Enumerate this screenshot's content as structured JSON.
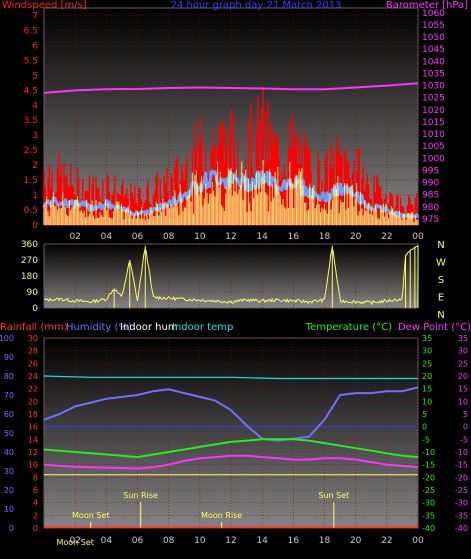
{
  "colors": {
    "windspeed": "#ff2020",
    "gust": "#ff0000",
    "avgwind": "#6fa0ff",
    "winddir": "#ffff60",
    "barometer": "#ff33ff",
    "rainfall": "#ff3333",
    "humidity": "#7070ff",
    "indoor_hum": "#ffffff",
    "indoor_temp": "#20e0e0",
    "temperature": "#22ee22",
    "dewpoint": "#ff33ff",
    "sun": "#ffff66",
    "moon": "#ffff66",
    "grid": "#9a0000"
  },
  "chart_data": [
    {
      "type": "line",
      "panel": "wind_barometer",
      "title": "24 hour graph day  21 March 2013",
      "left_axis_label": "Windspeed [m/s]",
      "right_axis_label": "Barometer [hPa]",
      "left_ticks": [
        "0",
        "0.5",
        "1",
        "1.5",
        "2",
        "2.5",
        "3",
        "3.5",
        "4",
        "4.5",
        "5",
        "5.5",
        "6",
        "6.5",
        "7"
      ],
      "left_range": [
        0,
        7.25
      ],
      "right_ticks": [
        "975",
        "980",
        "985",
        "990",
        "995",
        "1000",
        "1005",
        "1010",
        "1015",
        "1020",
        "1025",
        "1030",
        "1035",
        "1040",
        "1045",
        "1050",
        "1055",
        "1060"
      ],
      "right_range": [
        972.5,
        1062
      ],
      "x_ticks": [
        "02",
        "04",
        "06",
        "08",
        "10",
        "12",
        "14",
        "16",
        "18",
        "20",
        "22",
        "00"
      ],
      "x_range": [
        0,
        24
      ],
      "barometer": {
        "x": [
          0,
          2,
          4,
          6,
          8,
          10,
          12,
          14,
          16,
          18,
          20,
          22,
          24
        ],
        "y": [
          1027.0,
          1028.0,
          1028.5,
          1028.6,
          1029.0,
          1029.2,
          1029.0,
          1028.8,
          1028.5,
          1028.5,
          1029.2,
          1030.0,
          1031.0
        ]
      },
      "gust_envelope": {
        "x": [
          0,
          1,
          2,
          3,
          4,
          5,
          6,
          7,
          8,
          9,
          10,
          11,
          12,
          13,
          14,
          15,
          16,
          17,
          18,
          19,
          20,
          21,
          22,
          23,
          24
        ],
        "y": [
          2.5,
          2.2,
          1.8,
          1.6,
          1.9,
          1.4,
          1.2,
          1.6,
          1.8,
          2.6,
          3.4,
          3.8,
          3.6,
          3.4,
          4.3,
          3.2,
          3.6,
          2.6,
          2.2,
          3.0,
          2.6,
          1.6,
          1.4,
          0.9,
          1.0
        ]
      },
      "avg_wind": {
        "x": [
          0,
          1,
          2,
          3,
          4,
          5,
          6,
          7,
          8,
          9,
          10,
          11,
          12,
          13,
          14,
          15,
          16,
          17,
          18,
          19,
          20,
          21,
          22,
          23,
          24
        ],
        "y": [
          0.7,
          0.8,
          0.7,
          0.6,
          0.7,
          0.5,
          0.4,
          0.5,
          0.7,
          1.0,
          1.4,
          1.6,
          1.5,
          1.4,
          1.6,
          1.3,
          1.5,
          1.1,
          0.9,
          1.2,
          1.0,
          0.6,
          0.5,
          0.3,
          0.3
        ]
      }
    },
    {
      "type": "scatter",
      "panel": "wind_direction",
      "left_ticks": [
        "0",
        "90",
        "180",
        "270",
        "360"
      ],
      "left_range": [
        0,
        360
      ],
      "right_labels": [
        "N",
        "W",
        "S",
        "E",
        "N"
      ],
      "x_range": [
        0,
        24
      ],
      "direction": {
        "x": [
          0,
          1,
          2,
          3,
          4,
          4.5,
          5,
          5.5,
          6,
          6.5,
          7,
          8,
          9,
          10,
          11,
          12,
          13,
          14,
          15,
          16,
          17,
          18,
          18.5,
          19,
          20,
          21,
          22,
          23,
          23.2,
          23.5,
          23.8,
          24
        ],
        "y": [
          45,
          50,
          40,
          35,
          50,
          110,
          60,
          270,
          40,
          350,
          60,
          55,
          50,
          45,
          40,
          35,
          45,
          40,
          45,
          40,
          35,
          45,
          350,
          40,
          35,
          30,
          40,
          50,
          300,
          320,
          340,
          355
        ]
      }
    },
    {
      "type": "line",
      "panel": "temp_humidity",
      "legend": [
        "Rainfall (mm)",
        "Humidity (%)",
        "Indoor hum",
        "Indoor temp",
        "Temperature (°C)",
        "Dew Point (°C)"
      ],
      "humidity_ticks": [
        "0",
        "10",
        "20",
        "30",
        "40",
        "50",
        "60",
        "70",
        "80",
        "90",
        "100"
      ],
      "humidity_range": [
        0,
        100
      ],
      "rain_ticks": [
        "0",
        "2",
        "4",
        "6",
        "8",
        "10",
        "12",
        "14",
        "16",
        "18",
        "20",
        "22",
        "24",
        "26",
        "28",
        "30"
      ],
      "rain_range": [
        0,
        30
      ],
      "temp_ticks_left": [
        "-40",
        "-35",
        "-30",
        "-25",
        "-20",
        "-15",
        "-10",
        "-5",
        "0",
        "5",
        "10",
        "15",
        "20",
        "25",
        "30",
        "35"
      ],
      "temp_ticks_right": [
        "-40",
        "-35",
        "-30",
        "-25",
        "-20",
        "-15",
        "-10",
        "-5",
        "0",
        "5",
        "10",
        "15",
        "20",
        "25",
        "30",
        "35"
      ],
      "temp_range": [
        -40,
        35
      ],
      "x_ticks": [
        "02",
        "04",
        "06",
        "08",
        "10",
        "12",
        "14",
        "16",
        "18",
        "20",
        "22",
        "00"
      ],
      "x_range": [
        0,
        24
      ],
      "humidity": {
        "x": [
          0,
          1,
          2,
          3,
          4,
          5,
          6,
          7,
          8,
          9,
          10,
          11,
          12,
          13,
          14,
          15,
          16,
          17,
          18,
          19,
          20,
          21,
          22,
          23,
          24
        ],
        "y": [
          57,
          60,
          64,
          66,
          68,
          69,
          70,
          72,
          73,
          71,
          69,
          67,
          62,
          54,
          47,
          46,
          47,
          48,
          57,
          70,
          71,
          71,
          72,
          72,
          74
        ]
      },
      "indoor_temp": {
        "x": [
          0,
          3,
          6,
          9,
          12,
          15,
          18,
          21,
          24
        ],
        "y": [
          20.0,
          19.5,
          19.5,
          19.5,
          19.5,
          19.0,
          19.0,
          19.0,
          19.0
        ]
      },
      "temperature": {
        "x": [
          0,
          1,
          2,
          3,
          4,
          5,
          6,
          7,
          8,
          9,
          10,
          11,
          12,
          13,
          14,
          15,
          16,
          17,
          18,
          19,
          20,
          21,
          22,
          23,
          24
        ],
        "y": [
          -9.0,
          -9.5,
          -10.0,
          -10.5,
          -11.0,
          -11.5,
          -12.0,
          -11.0,
          -10.0,
          -9.0,
          -8.0,
          -7.0,
          -6.0,
          -5.5,
          -5.0,
          -5.0,
          -5.0,
          -5.5,
          -6.5,
          -7.5,
          -8.5,
          -9.5,
          -10.5,
          -11.5,
          -12.0
        ]
      },
      "dewpoint": {
        "x": [
          0,
          1,
          2,
          3,
          4,
          5,
          6,
          7,
          8,
          9,
          10,
          11,
          12,
          13,
          14,
          15,
          16,
          17,
          18,
          19,
          20,
          21,
          22,
          23,
          24
        ],
        "y": [
          -15.0,
          -15.5,
          -15.8,
          -16.0,
          -16.2,
          -16.3,
          -16.5,
          -16.0,
          -15.0,
          -13.5,
          -12.5,
          -12.0,
          -11.5,
          -11.5,
          -12.0,
          -12.5,
          -13.0,
          -13.0,
          -12.5,
          -12.5,
          -13.0,
          -14.0,
          -15.0,
          -15.5,
          -16.0
        ]
      },
      "indoor_hum_level": -19.0,
      "events": [
        {
          "label": "Sun Rise",
          "x": 6.2,
          "row": "upper"
        },
        {
          "label": "Sun Set",
          "x": 18.6,
          "row": "upper"
        },
        {
          "label": "Moon Set",
          "x": 3.0,
          "row": "middle"
        },
        {
          "label": "Moon Rise",
          "x": 11.4,
          "row": "middle"
        },
        {
          "label": "Moon Set",
          "x": 2.0,
          "row": "lower"
        }
      ]
    }
  ]
}
